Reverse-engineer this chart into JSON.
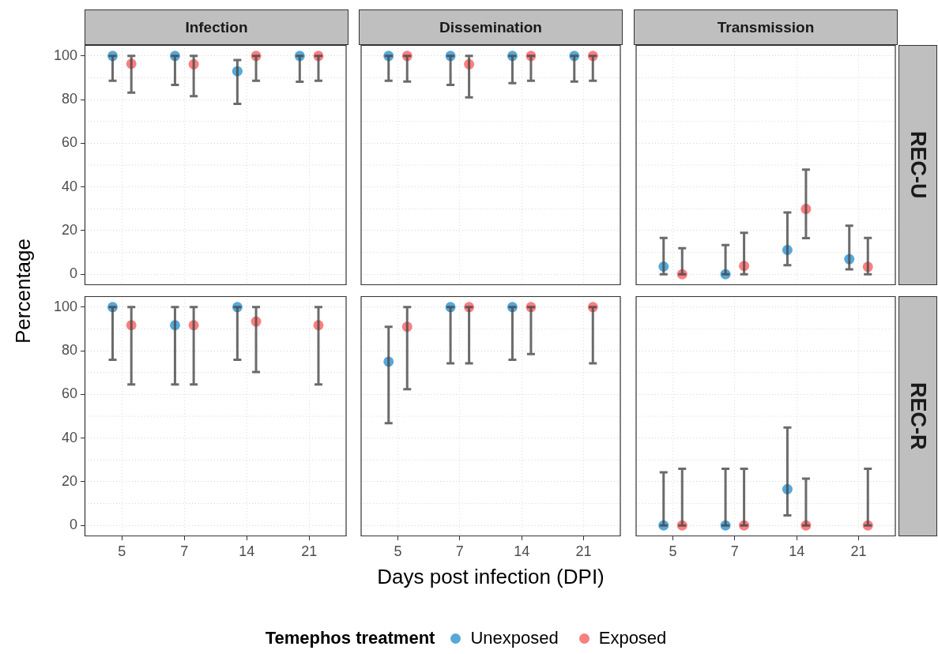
{
  "chart_data": [
    {
      "type": "scatter",
      "title": "Infection",
      "ylabel": "Percentage",
      "legend": "bottom",
      "legend_title": "Temephos treatment",
      "categories": [
        "5",
        "7",
        "14",
        "21"
      ],
      "ylim": [
        -5,
        105
      ],
      "yticks": [
        0,
        20,
        40,
        60,
        80,
        100
      ],
      "grid": true,
      "marker": "circle",
      "tick_labels": "y",
      "series": [
        {
          "name": "Unexposed",
          "color": "#3a99d1",
          "values": [
            100,
            100,
            93,
            100
          ],
          "errors": [
            [
              88.6,
              100
            ],
            [
              86.7,
              100
            ],
            [
              78,
              98.1
            ],
            [
              88.2,
              100
            ]
          ]
        },
        {
          "name": "Exposed",
          "color": "#f8696b",
          "values": [
            96.4,
            96.2,
            100,
            100
          ],
          "errors": [
            [
              83.2,
              100
            ],
            [
              81.6,
              100
            ],
            [
              88.6,
              100
            ],
            [
              88.6,
              100
            ]
          ]
        }
      ]
    },
    {
      "type": "scatter",
      "title": "Dissemination",
      "categories": [
        "5",
        "7",
        "14",
        "21"
      ],
      "ylim": [
        -5,
        105
      ],
      "yticks": [
        0,
        20,
        40,
        60,
        80,
        100
      ],
      "grid": true,
      "marker": "circle",
      "tick_labels": false,
      "series": [
        {
          "color": "#3a99d1",
          "values": [
            100,
            100,
            100,
            100
          ],
          "errors": [
            [
              88.6,
              100
            ],
            [
              86.7,
              100
            ],
            [
              87.5,
              100
            ],
            [
              88.3,
              100
            ]
          ]
        },
        {
          "color": "#f8696b",
          "values": [
            100,
            96.2,
            100,
            100
          ],
          "errors": [
            [
              88.3,
              100
            ],
            [
              81,
              100
            ],
            [
              88.6,
              100
            ],
            [
              88.6,
              100
            ]
          ]
        }
      ]
    },
    {
      "type": "scatter",
      "title": "Transmission",
      "annotations": [
        "REC-U"
      ],
      "categories": [
        "5",
        "7",
        "14",
        "21"
      ],
      "ylim": [
        -5,
        105
      ],
      "yticks": [
        0,
        20,
        40,
        60,
        80,
        100
      ],
      "grid": true,
      "marker": "circle",
      "tick_labels": false,
      "series": [
        {
          "color": "#3a99d1",
          "values": [
            3.5,
            0,
            11.1,
            6.9
          ],
          "errors": [
            [
              0,
              16.6
            ],
            [
              0,
              13.4
            ],
            [
              4.1,
              28.3
            ],
            [
              2.2,
              22.2
            ]
          ]
        },
        {
          "color": "#f8696b",
          "values": [
            0,
            3.8,
            29.9,
            3.4
          ],
          "errors": [
            [
              0,
              11.9
            ],
            [
              0,
              19
            ],
            [
              16.5,
              47.9
            ],
            [
              0,
              16.6
            ]
          ]
        }
      ]
    },
    {
      "type": "scatter",
      "categories": [
        "5",
        "7",
        "14",
        "21"
      ],
      "ylim": [
        -5,
        105
      ],
      "yticks": [
        0,
        20,
        40,
        60,
        80,
        100
      ],
      "grid": true,
      "marker": "circle",
      "series": [
        {
          "color": "#3a99d1",
          "values": [
            100,
            91.7,
            100,
            null
          ],
          "errors": [
            [
              75.9,
              100
            ],
            [
              64.6,
              100
            ],
            [
              75.9,
              100
            ],
            null
          ]
        },
        {
          "color": "#f8696b",
          "values": [
            91.7,
            91.7,
            93.4,
            91.7
          ],
          "errors": [
            [
              64.6,
              100
            ],
            [
              64.6,
              100
            ],
            [
              70.3,
              100
            ],
            [
              64.6,
              100
            ]
          ]
        }
      ]
    },
    {
      "type": "scatter",
      "xlabel": "Days post infection (DPI)",
      "categories": [
        "5",
        "7",
        "14",
        "21"
      ],
      "ylim": [
        -5,
        105
      ],
      "yticks": [
        0,
        20,
        40,
        60,
        80,
        100
      ],
      "grid": true,
      "marker": "circle",
      "tick_labels": "x",
      "series": [
        {
          "color": "#3a99d1",
          "values": [
            75,
            100,
            100,
            null
          ],
          "errors": [
            [
              46.8,
              91
            ],
            [
              74.2,
              100
            ],
            [
              75.9,
              100
            ],
            null
          ]
        },
        {
          "color": "#f8696b",
          "values": [
            91,
            100,
            100,
            100
          ],
          "errors": [
            [
              62.4,
              100
            ],
            [
              74.2,
              100
            ],
            [
              78.5,
              100
            ],
            [
              74.2,
              100
            ]
          ]
        }
      ]
    },
    {
      "type": "scatter",
      "annotations": [
        "REC-R"
      ],
      "categories": [
        "5",
        "7",
        "14",
        "21"
      ],
      "ylim": [
        -5,
        105
      ],
      "yticks": [
        0,
        20,
        40,
        60,
        80,
        100
      ],
      "grid": true,
      "marker": "circle",
      "tick_labels": "x",
      "series": [
        {
          "color": "#3a99d1",
          "values": [
            0,
            0,
            16.6,
            null
          ],
          "errors": [
            [
              0,
              24.3
            ],
            [
              0,
              25.9
            ],
            [
              4.6,
              44.8
            ],
            null
          ]
        },
        {
          "color": "#f8696b",
          "values": [
            0,
            0,
            0,
            0
          ],
          "errors": [
            [
              0,
              25.9
            ],
            [
              0,
              25.9
            ],
            [
              0,
              21.4
            ],
            [
              0,
              25.9
            ]
          ]
        }
      ]
    }
  ]
}
